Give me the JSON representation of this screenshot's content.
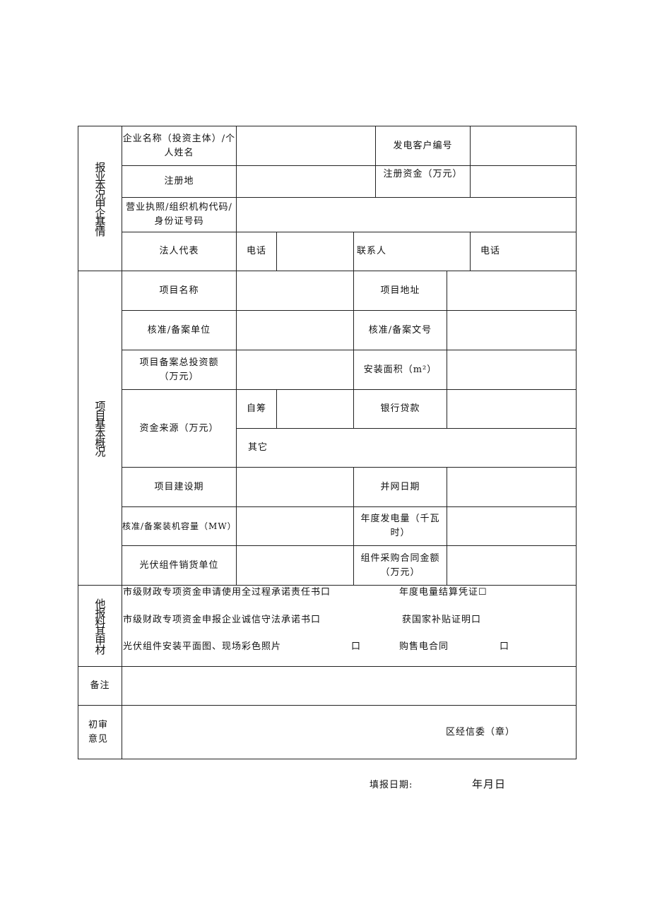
{
  "section1": {
    "title": "报业本况申企基情",
    "company_name_label": "企业名称（投资主体）/个人姓名",
    "customer_no_label": "发电客户编号",
    "reg_place_label": "注册地",
    "reg_capital_label": "注册资金（万元）",
    "license_label": "营业执照/组织机构代码/身份证号码",
    "legal_rep_label": "法人代表",
    "phone_label": "电话",
    "contact_label": "联系人",
    "phone2_label": "电话"
  },
  "section2": {
    "title": "项目基本概况",
    "project_name": "项目名称",
    "project_address": "项目地址",
    "approval_unit": "核准/备案单位",
    "approval_doc": "核准/备案文号",
    "total_invest": "项目备案总投资额（万元）",
    "install_area": "安装面积（m²）",
    "fund_source": "资金来源（万元）",
    "self_raised": "自筹",
    "bank_loan": "银行贷款",
    "other": "其它",
    "build_period": "项目建设期",
    "grid_date": "并网日期",
    "capacity": "核准/备案装机容量（MW）",
    "annual_power": "年度发电量（千瓦时）",
    "supplier": "光伏组件销货单位",
    "contract_amount": "组件采购合同金额（万元）"
  },
  "section3": {
    "title": "他报料其申材",
    "items": [
      "市级财政专项资金申请使用全过程承诺责任书口",
      "年度电量结算凭证☐",
      "市级财政专项资金申报企业诚信守法承诺书口",
      "获国家补贴证明口",
      "光伏组件安装平面图、现场彩色照片",
      "口",
      "购售电合同",
      "口"
    ]
  },
  "remarks_label": "备注",
  "review_label": "初审意见",
  "review_seal": "区经信委（章）",
  "footer": {
    "date_label": "填报日期:",
    "date_value": "年月日"
  }
}
